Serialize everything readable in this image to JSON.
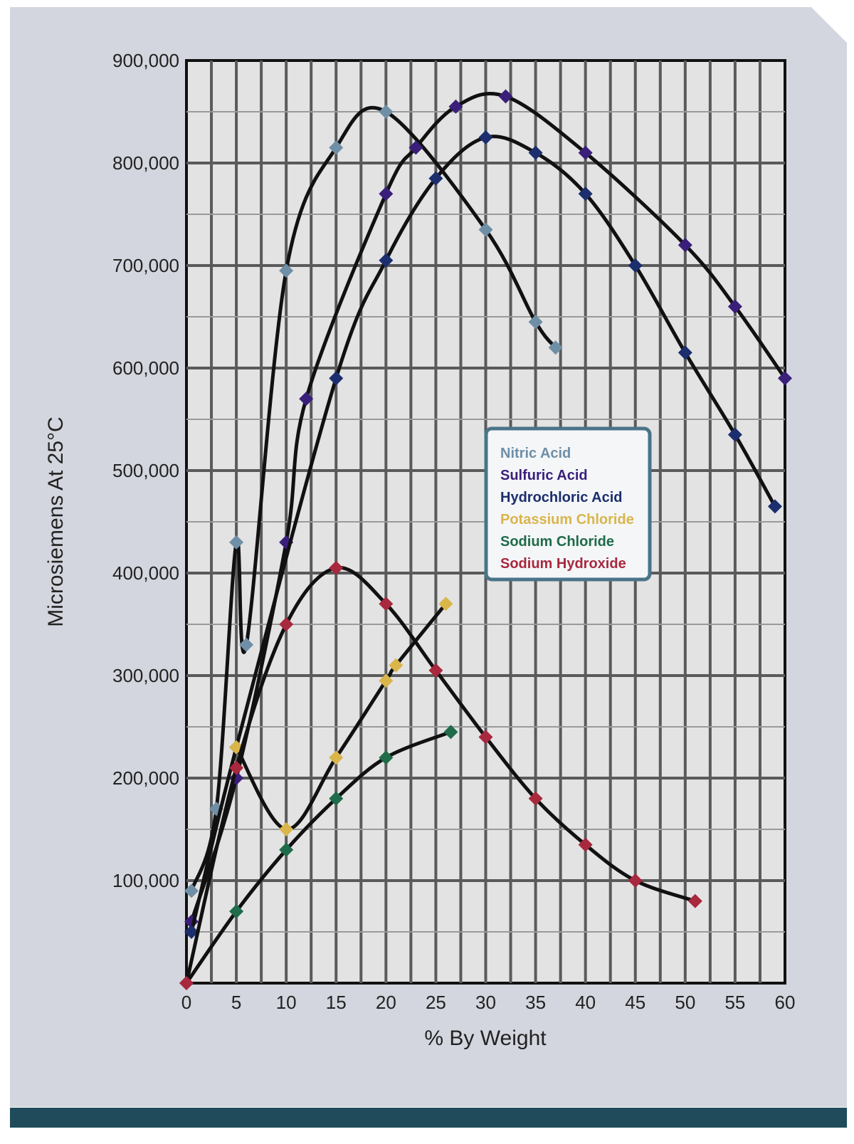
{
  "chart_data": {
    "type": "line",
    "xlabel": "% By Weight",
    "ylabel": "Microsiemens At 25°C",
    "xlim": [
      0,
      60
    ],
    "ylim": [
      0,
      900000
    ],
    "xticks": [
      0,
      5,
      10,
      15,
      20,
      25,
      30,
      35,
      40,
      45,
      50,
      55,
      60
    ],
    "xtick_labels": [
      "0",
      "5",
      "10",
      "15",
      "20",
      "25",
      "30",
      "35",
      "40",
      "45",
      "50",
      "55",
      "60"
    ],
    "yticks": [
      100000,
      200000,
      300000,
      400000,
      500000,
      600000,
      700000,
      800000,
      900000
    ],
    "ytick_labels": [
      "100,000",
      "200,000",
      "300,000",
      "400,000",
      "500,000",
      "600,000",
      "700,000",
      "800,000",
      "900,000"
    ],
    "grid": true,
    "legend_position": "center-right",
    "series": [
      {
        "name": "Nitric Acid",
        "color": "#6f8fa6",
        "points": [
          [
            0.5,
            90000
          ],
          [
            3,
            170000
          ],
          [
            5,
            430000
          ],
          [
            6,
            330000
          ],
          [
            10,
            695000
          ],
          [
            15,
            815000
          ],
          [
            20,
            850000
          ],
          [
            30,
            735000
          ],
          [
            35,
            645000
          ],
          [
            37,
            620000
          ]
        ]
      },
      {
        "name": "Sulfuric Acid",
        "color": "#3a1f7a",
        "points": [
          [
            0.5,
            60000
          ],
          [
            5,
            200000
          ],
          [
            10,
            430000
          ],
          [
            12,
            570000
          ],
          [
            20,
            770000
          ],
          [
            23,
            815000
          ],
          [
            27,
            855000
          ],
          [
            32,
            865000
          ],
          [
            40,
            810000
          ],
          [
            50,
            720000
          ],
          [
            55,
            660000
          ],
          [
            60,
            590000
          ]
        ]
      },
      {
        "name": "Hydrochloric Acid",
        "color": "#1c2e6e",
        "points": [
          [
            0.5,
            50000
          ],
          [
            5,
            230000
          ],
          [
            15,
            590000
          ],
          [
            20,
            705000
          ],
          [
            25,
            785000
          ],
          [
            30,
            825000
          ],
          [
            35,
            810000
          ],
          [
            40,
            770000
          ],
          [
            45,
            700000
          ],
          [
            50,
            615000
          ],
          [
            55,
            535000
          ],
          [
            59,
            465000
          ]
        ]
      },
      {
        "name": "Potassium Chloride",
        "color": "#d9b54a",
        "points": [
          [
            5,
            230000
          ],
          [
            10,
            150000
          ],
          [
            15,
            220000
          ],
          [
            20,
            295000
          ],
          [
            21,
            310000
          ],
          [
            26,
            370000
          ]
        ]
      },
      {
        "name": "Sodium Chloride",
        "color": "#1f6b4a",
        "points": [
          [
            0,
            0
          ],
          [
            5,
            70000
          ],
          [
            10,
            130000
          ],
          [
            15,
            180000
          ],
          [
            20,
            220000
          ],
          [
            26.5,
            245000
          ]
        ]
      },
      {
        "name": "Sodium Hydroxide",
        "color": "#a8283e",
        "points": [
          [
            0,
            0
          ],
          [
            5,
            210000
          ],
          [
            10,
            350000
          ],
          [
            15,
            405000
          ],
          [
            20,
            370000
          ],
          [
            25,
            305000
          ],
          [
            30,
            240000
          ],
          [
            35,
            180000
          ],
          [
            40,
            135000
          ],
          [
            45,
            100000
          ],
          [
            51,
            80000
          ]
        ]
      }
    ]
  }
}
